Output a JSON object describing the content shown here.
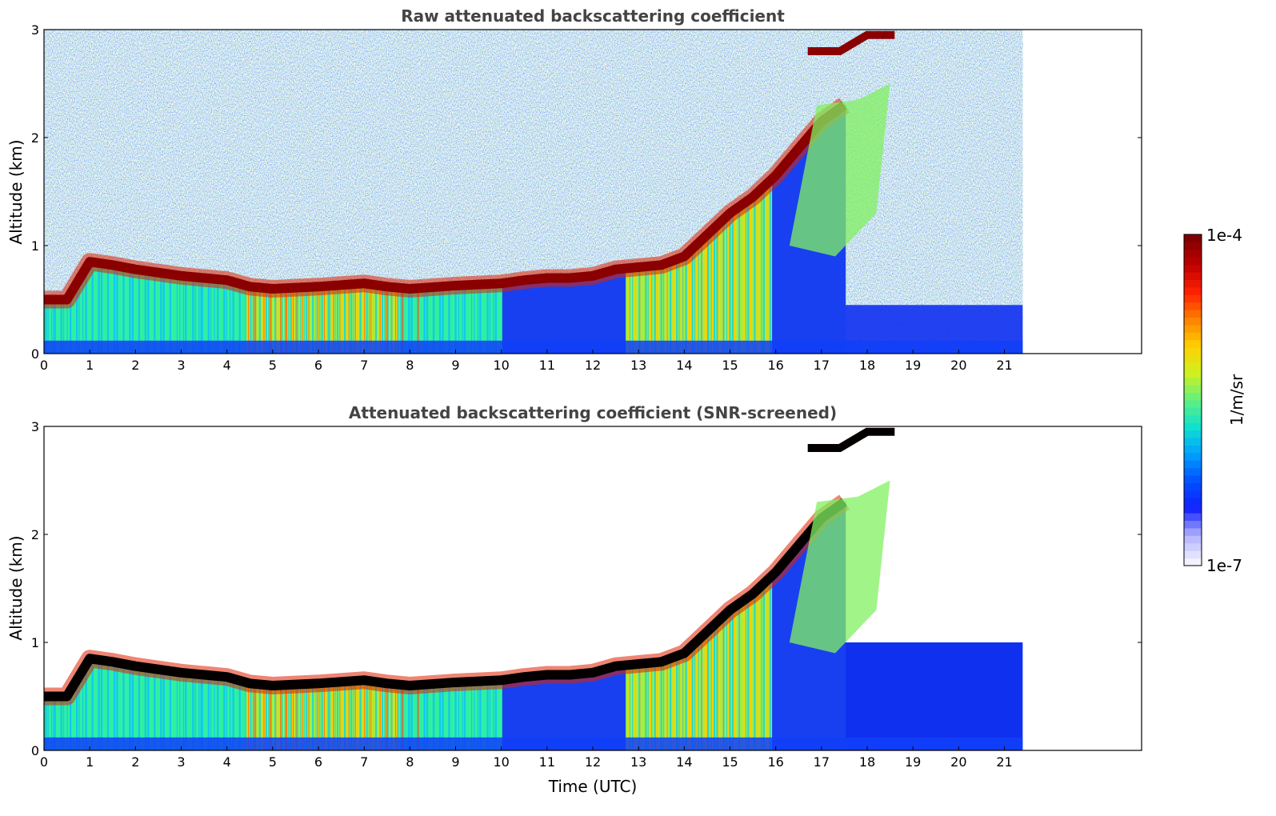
{
  "chart_data": [
    {
      "type": "heatmap",
      "title": "Raw attenuated backscattering coefficient",
      "xlabel": "",
      "ylabel": "Altitude (km)",
      "xlim": [
        0,
        24
      ],
      "ylim": [
        0,
        3
      ],
      "x_ticks": [
        "0",
        "1",
        "2",
        "3",
        "4",
        "5",
        "6",
        "7",
        "8",
        "9",
        "10",
        "11",
        "12",
        "13",
        "14",
        "15",
        "16",
        "17",
        "18",
        "19",
        "20",
        "21"
      ],
      "y_ticks": [
        "0",
        "1",
        "2",
        "3"
      ],
      "data_time_range": [
        0,
        21.4
      ],
      "cloud_base_layer": {
        "time": [
          0,
          0.5,
          1,
          1.5,
          2,
          2.5,
          3,
          3.5,
          4,
          4.5,
          5,
          6,
          7,
          7.5,
          8,
          9,
          10,
          10.5,
          11,
          11.5,
          12,
          12.5,
          13,
          13.5,
          14,
          14.5,
          15,
          15.5,
          16,
          16.5,
          17,
          17.5
        ],
        "altitude_km": [
          0.5,
          0.5,
          0.85,
          0.82,
          0.78,
          0.75,
          0.72,
          0.7,
          0.68,
          0.62,
          0.6,
          0.62,
          0.65,
          0.62,
          0.6,
          0.63,
          0.65,
          0.68,
          0.7,
          0.7,
          0.72,
          0.78,
          0.8,
          0.82,
          0.9,
          1.1,
          1.3,
          1.45,
          1.65,
          1.9,
          2.15,
          2.3
        ]
      },
      "upper_layer": {
        "time": [
          16.7,
          17.4,
          18.0,
          18.6
        ],
        "altitude_km": [
          2.8,
          2.8,
          2.95,
          2.95
        ]
      },
      "colorbar_index": 0
    },
    {
      "type": "heatmap",
      "title": "Attenuated backscattering coefficient (SNR-screened)",
      "xlabel": "Time (UTC)",
      "ylabel": "Altitude (km)",
      "xlim": [
        0,
        24
      ],
      "ylim": [
        0,
        3
      ],
      "x_ticks": [
        "0",
        "1",
        "2",
        "3",
        "4",
        "5",
        "6",
        "7",
        "8",
        "9",
        "10",
        "11",
        "12",
        "13",
        "14",
        "15",
        "16",
        "17",
        "18",
        "19",
        "20",
        "21"
      ],
      "y_ticks": [
        "0",
        "1",
        "2",
        "3"
      ],
      "data_time_range": [
        0,
        21.4
      ],
      "screened": true,
      "colorbar_index": 0
    }
  ],
  "colorbar": {
    "label": "1/m/sr",
    "min_label": "1e-7",
    "max_label": "1e-4",
    "scale": "log",
    "range": [
      1e-07,
      0.0001
    ],
    "colormap": [
      "#f2f2ff",
      "#b0b0ff",
      "#1020ff",
      "#0050ff",
      "#00a0ff",
      "#10e0d0",
      "#60f080",
      "#d0f020",
      "#ffd000",
      "#ff8000",
      "#ff2000",
      "#c00000",
      "#800000"
    ]
  }
}
